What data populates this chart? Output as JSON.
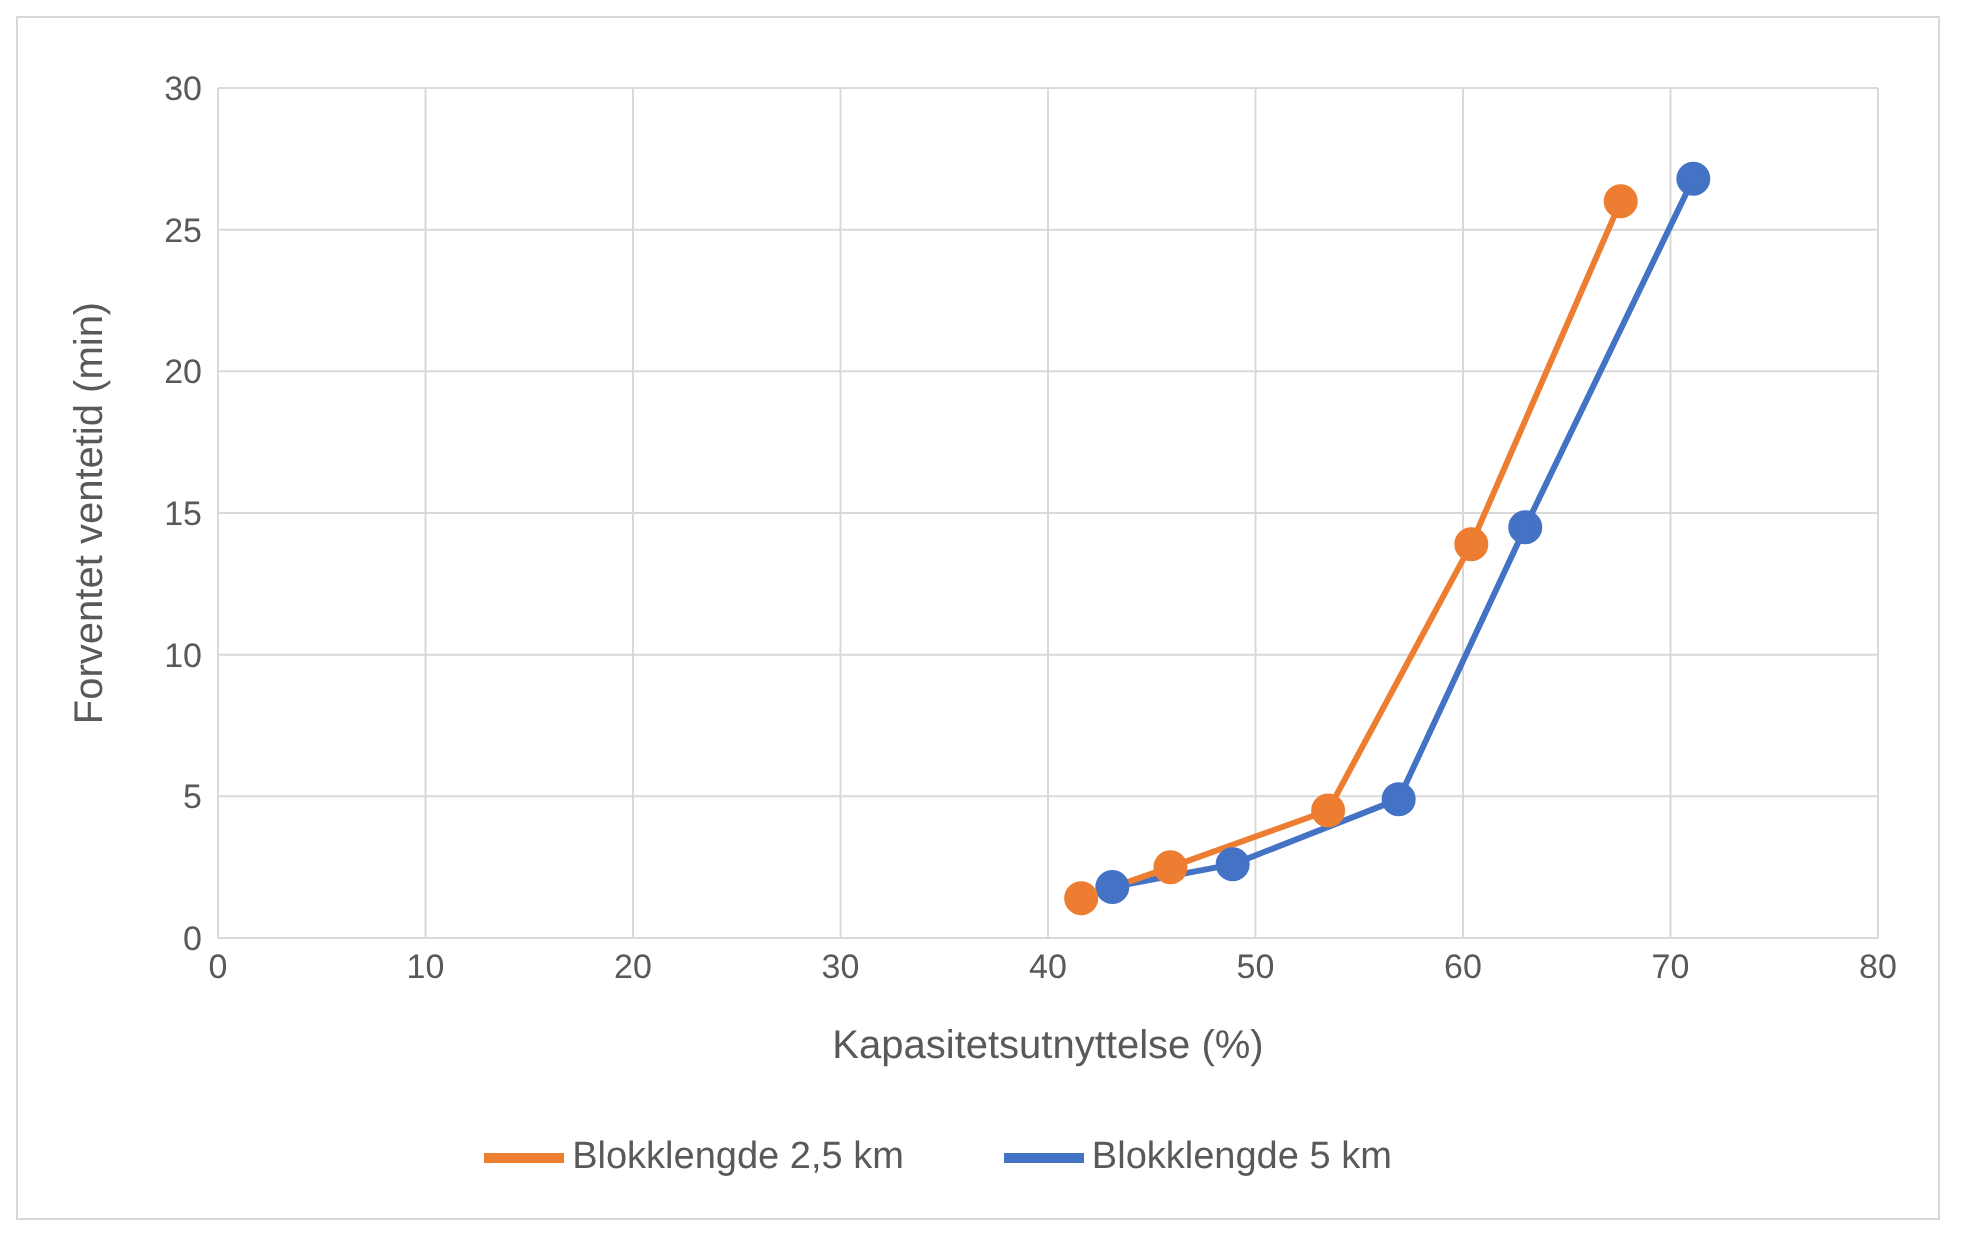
{
  "chart_data": {
    "type": "line",
    "xlabel": "Kapasitetsutnyttelse (%)",
    "ylabel": "Forventet ventetid (min)",
    "xlim": [
      0,
      80
    ],
    "xticks": [
      0,
      10,
      20,
      30,
      40,
      50,
      60,
      70,
      80
    ],
    "ylim": [
      0,
      30
    ],
    "yticks": [
      0,
      5,
      10,
      15,
      20,
      25,
      30
    ],
    "grid": true,
    "legend": "bottom",
    "marker": "circle",
    "line_style": "solid",
    "series": [
      {
        "name": "Blokklengde 5 km",
        "color": "#4472c4",
        "x": [
          43.1,
          48.9,
          56.9,
          63.0,
          71.1
        ],
        "values": [
          1.8,
          2.6,
          4.9,
          14.5,
          26.8
        ]
      },
      {
        "name": "Blokklengde 2,5 km",
        "color": "#ed7d31",
        "x": [
          41.6,
          45.9,
          53.5,
          60.4,
          67.6
        ],
        "values": [
          1.4,
          2.5,
          4.5,
          13.9,
          26.0
        ]
      }
    ]
  }
}
